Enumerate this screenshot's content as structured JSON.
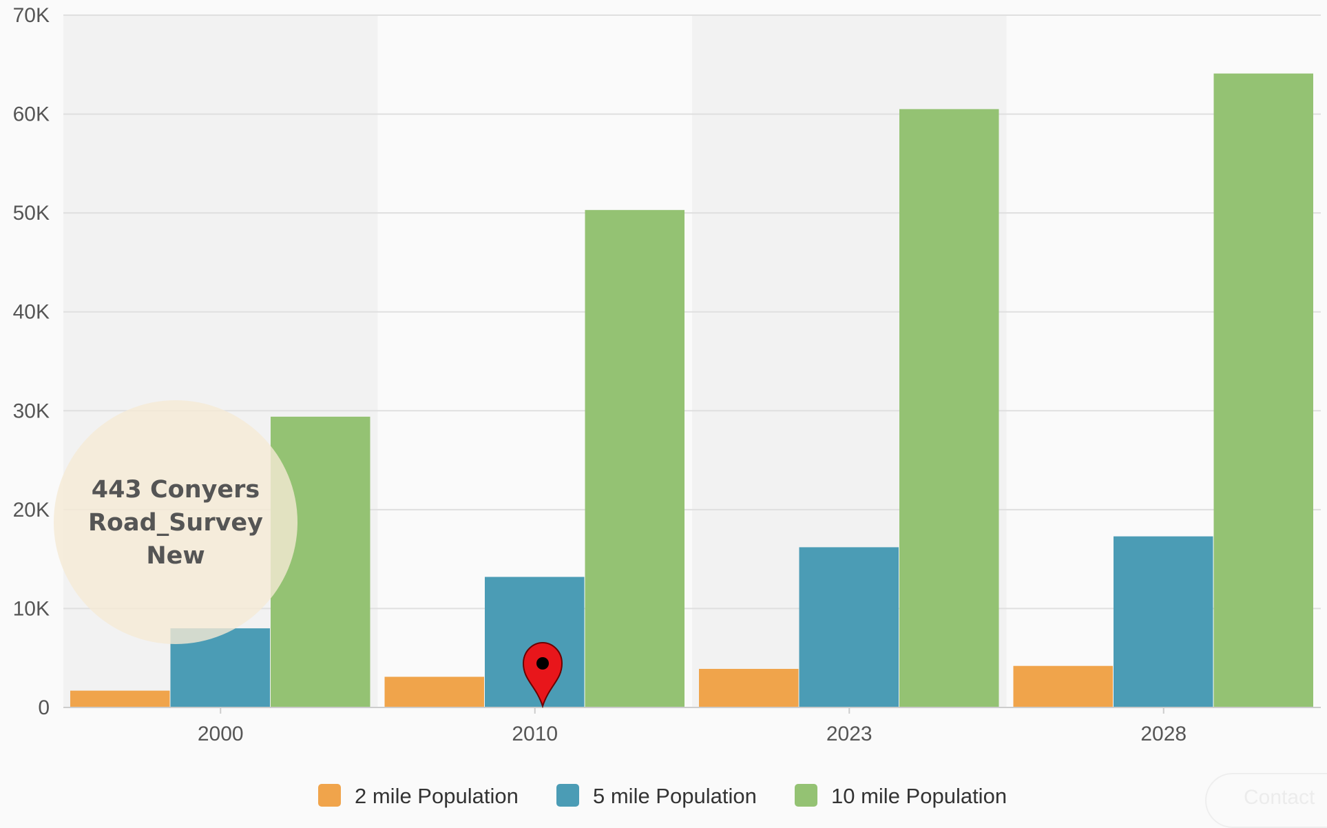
{
  "chart_data": {
    "type": "bar",
    "categories": [
      "2000",
      "2010",
      "2023",
      "2028"
    ],
    "series": [
      {
        "name": "2 mile Population",
        "color": "#f0a44b",
        "values": [
          1700,
          3100,
          3900,
          4200
        ]
      },
      {
        "name": "5 mile Population",
        "color": "#4b9cb5",
        "values": [
          8000,
          13200,
          16200,
          17300
        ]
      },
      {
        "name": "10 mile Population",
        "color": "#94c273",
        "values": [
          29400,
          50300,
          60500,
          64100
        ]
      }
    ],
    "ylim": [
      0,
      70000
    ],
    "yticks": [
      0,
      10000,
      20000,
      30000,
      40000,
      50000,
      60000,
      70000
    ],
    "ytick_labels": [
      "0",
      "10K",
      "20K",
      "30K",
      "40K",
      "50K",
      "60K",
      "70K"
    ],
    "grid": true,
    "legend_position": "bottom-center",
    "title": "",
    "xlabel": "",
    "ylabel": ""
  },
  "overlay": {
    "badge_lines": [
      "443 Conyers",
      "Road_Survey",
      "New"
    ],
    "marker_icon": "map-pin-icon",
    "contact_button": "Contact"
  }
}
